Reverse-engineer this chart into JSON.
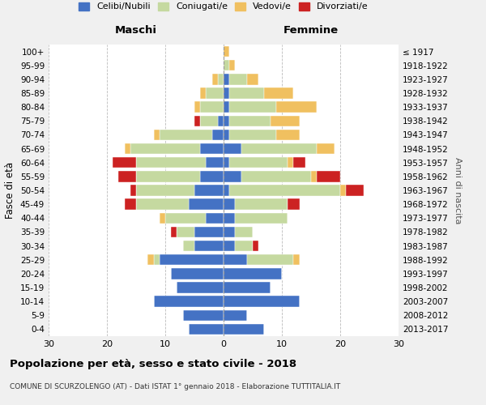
{
  "age_groups": [
    "0-4",
    "5-9",
    "10-14",
    "15-19",
    "20-24",
    "25-29",
    "30-34",
    "35-39",
    "40-44",
    "45-49",
    "50-54",
    "55-59",
    "60-64",
    "65-69",
    "70-74",
    "75-79",
    "80-84",
    "85-89",
    "90-94",
    "95-99",
    "100+"
  ],
  "birth_years": [
    "2013-2017",
    "2008-2012",
    "2003-2007",
    "1998-2002",
    "1993-1997",
    "1988-1992",
    "1983-1987",
    "1978-1982",
    "1973-1977",
    "1968-1972",
    "1963-1967",
    "1958-1962",
    "1953-1957",
    "1948-1952",
    "1943-1947",
    "1938-1942",
    "1933-1937",
    "1928-1932",
    "1923-1927",
    "1918-1922",
    "≤ 1917"
  ],
  "colors": {
    "celibi": "#4472c4",
    "coniugati": "#c5d9a0",
    "vedovi": "#f0c060",
    "divorziati": "#cc2222"
  },
  "maschi": {
    "celibi": [
      6,
      7,
      12,
      8,
      9,
      11,
      5,
      5,
      3,
      6,
      5,
      4,
      3,
      4,
      2,
      1,
      0,
      0,
      0,
      0,
      0
    ],
    "coniugati": [
      0,
      0,
      0,
      0,
      0,
      1,
      2,
      3,
      7,
      9,
      10,
      11,
      12,
      12,
      9,
      3,
      4,
      3,
      1,
      0,
      0
    ],
    "vedovi": [
      0,
      0,
      0,
      0,
      0,
      1,
      0,
      0,
      1,
      0,
      0,
      0,
      0,
      1,
      1,
      0,
      1,
      1,
      1,
      0,
      0
    ],
    "divorziati": [
      0,
      0,
      0,
      0,
      0,
      0,
      0,
      1,
      0,
      2,
      1,
      3,
      4,
      0,
      0,
      1,
      0,
      0,
      0,
      0,
      0
    ]
  },
  "femmine": {
    "celibi": [
      7,
      4,
      13,
      8,
      10,
      4,
      2,
      2,
      2,
      2,
      1,
      3,
      1,
      3,
      1,
      1,
      1,
      1,
      1,
      0,
      0
    ],
    "coniugati": [
      0,
      0,
      0,
      0,
      0,
      8,
      3,
      3,
      9,
      9,
      19,
      12,
      10,
      13,
      8,
      7,
      8,
      6,
      3,
      1,
      0
    ],
    "vedovi": [
      0,
      0,
      0,
      0,
      0,
      1,
      0,
      0,
      0,
      0,
      1,
      1,
      1,
      3,
      4,
      5,
      7,
      5,
      2,
      1,
      1
    ],
    "divorziati": [
      0,
      0,
      0,
      0,
      0,
      0,
      1,
      0,
      0,
      2,
      3,
      4,
      2,
      0,
      0,
      0,
      0,
      0,
      0,
      0,
      0
    ]
  },
  "xlim": 30,
  "title": "Popolazione per età, sesso e stato civile - 2018",
  "subtitle": "COMUNE DI SCURZOLENGO (AT) - Dati ISTAT 1° gennaio 2018 - Elaborazione TUTTITALIA.IT",
  "xlabel_left": "Maschi",
  "xlabel_right": "Femmine",
  "ylabel": "Fasce di età",
  "ylabel_right": "Anni di nascita",
  "legend_labels": [
    "Celibi/Nubili",
    "Coniugati/e",
    "Vedovi/e",
    "Divorziati/e"
  ],
  "background_color": "#f0f0f0",
  "plot_bg": "#ffffff"
}
